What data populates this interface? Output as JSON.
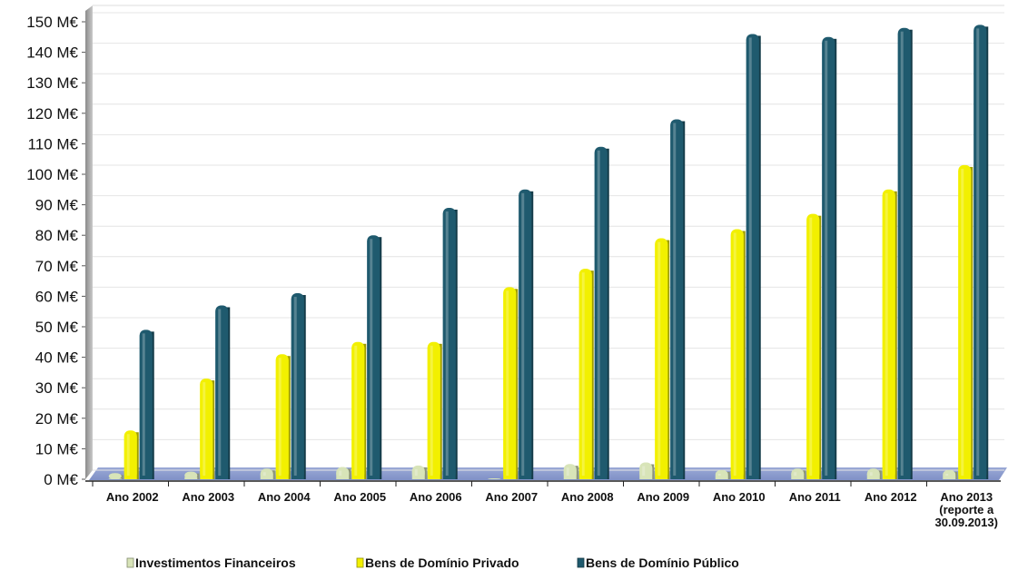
{
  "chart_data": {
    "type": "bar",
    "categories": [
      [
        "Ano 2002"
      ],
      [
        "Ano 2003"
      ],
      [
        "Ano 2004"
      ],
      [
        "Ano 2005"
      ],
      [
        "Ano 2006"
      ],
      [
        "Ano 2007"
      ],
      [
        "Ano 2008"
      ],
      [
        "Ano 2009"
      ],
      [
        "Ano 2010"
      ],
      [
        "Ano 2011"
      ],
      [
        "Ano 2012"
      ],
      [
        "Ano 2013",
        "(reporte a",
        "30.09.2013)"
      ]
    ],
    "series": [
      {
        "name": "Investimentos Financeiros",
        "values": [
          2,
          2.5,
          3.5,
          4,
          4.5,
          0.3,
          5,
          5.5,
          3,
          3.5,
          3.5,
          3
        ],
        "color": "#d8e4b8"
      },
      {
        "name": "Bens de Domínio Privado",
        "values": [
          16,
          33,
          41,
          45,
          45,
          63,
          69,
          79,
          82,
          87,
          95,
          103
        ],
        "color": "#f2f000"
      },
      {
        "name": "Bens de Domínio Público",
        "values": [
          49,
          57,
          61,
          80,
          89,
          95,
          109,
          118,
          146,
          145,
          148,
          149
        ],
        "color": "#1f5a6e"
      }
    ],
    "yticks": [
      "0 M€",
      "10 M€",
      "20 M€",
      "30 M€",
      "40 M€",
      "50 M€",
      "60 M€",
      "70 M€",
      "80 M€",
      "90 M€",
      "100 M€",
      "110 M€",
      "120 M€",
      "130 M€",
      "140 M€",
      "150 M€"
    ],
    "ylim": [
      0,
      150
    ],
    "grid": true,
    "legend_position": "bottom"
  }
}
